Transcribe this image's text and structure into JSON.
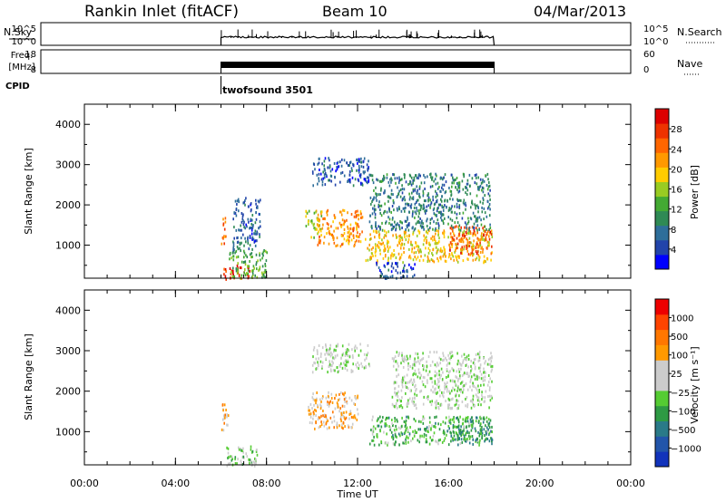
{
  "header": {
    "title": "Rankin Inlet (fitACF)",
    "beam": "Beam 10",
    "date": "04/Mar/2013"
  },
  "aux_panels": {
    "nsky_label": "N.Sky",
    "nsky_ticks": [
      "10^5",
      "10^0"
    ],
    "nsky_right_ticks": [
      "10^5",
      "10^0"
    ],
    "nsearch_label": "N.Search",
    "freq_label_top": "Freq.",
    "freq_label_bottom": "[MHz]",
    "freq_ticks": [
      "18",
      "8"
    ],
    "nave_ticks": [
      "60",
      "0"
    ],
    "nave_label": "Nave",
    "cpid_label": "CPID",
    "cpid_value": "twofsound 3501"
  },
  "x_axis": {
    "label": "Time UT",
    "ticks": [
      "00:00",
      "04:00",
      "08:00",
      "12:00",
      "16:00",
      "20:00",
      "00:00"
    ],
    "range_hours": [
      0,
      24
    ],
    "data_span_hours": [
      6,
      18
    ]
  },
  "y_axis": {
    "label": "Slant Range [km]",
    "ticks": [
      "4000",
      "3000",
      "2000",
      "1000"
    ],
    "range_km": [
      180,
      4500
    ]
  },
  "power_colorbar": {
    "label": "Power [dB]",
    "ticks": [
      "28",
      "24",
      "20",
      "16",
      "12",
      "8",
      "4"
    ],
    "colors": [
      "#0000ff",
      "#2244aa",
      "#2e6e9a",
      "#2f8a55",
      "#44aa33",
      "#99cc22",
      "#ffcc00",
      "#ff9900",
      "#ff6600",
      "#ee3300",
      "#dd0000"
    ]
  },
  "velocity_colorbar": {
    "label": "Velocity [m s⁻¹]",
    "ticks": [
      "1000",
      "500",
      "100",
      "25",
      "−25",
      "−100",
      "−500",
      "−1000"
    ],
    "colors": [
      "#1133bb",
      "#2255aa",
      "#2a7a88",
      "#2e9a44",
      "#55cc33",
      "#cccccc",
      "#cccccc",
      "#ff9900",
      "#ff7700",
      "#ff4400",
      "#ee0000"
    ]
  },
  "chart_data": {
    "type": "heatmap",
    "title": "Rankin Inlet (fitACF)",
    "xlabel": "Time UT",
    "ylabel": "Slant Range [km]",
    "xlim": [
      0,
      24
    ],
    "ylim": [
      180,
      4500
    ],
    "panels": [
      {
        "name": "Power [dB]",
        "clim": [
          0,
          30
        ],
        "regions": [
          {
            "t": [
              6.0,
              6.2
            ],
            "r": [
              1000,
              1800
            ],
            "v": 22
          },
          {
            "t": [
              6.1,
              7.3
            ],
            "r": [
              180,
              520
            ],
            "v": 27
          },
          {
            "t": [
              6.3,
              8.0
            ],
            "r": [
              200,
              900
            ],
            "v": 12
          },
          {
            "t": [
              6.5,
              7.7
            ],
            "r": [
              900,
              2200
            ],
            "v": 6
          },
          {
            "t": [
              9.7,
              10.4
            ],
            "r": [
              1200,
              1900
            ],
            "v": 16
          },
          {
            "t": [
              10.2,
              12.2
            ],
            "r": [
              1000,
              1900
            ],
            "v": 21
          },
          {
            "t": [
              10.0,
              12.5
            ],
            "r": [
              2500,
              3200
            ],
            "v": 5
          },
          {
            "t": [
              12.3,
              17.9
            ],
            "r": [
              600,
              1400
            ],
            "v": 18
          },
          {
            "t": [
              16.0,
              17.9
            ],
            "r": [
              800,
              1500
            ],
            "v": 24
          },
          {
            "t": [
              12.5,
              17.8
            ],
            "r": [
              1400,
              2800
            ],
            "v": 8
          },
          {
            "t": [
              12.8,
              14.5
            ],
            "r": [
              200,
              600
            ],
            "v": 5
          }
        ]
      },
      {
        "name": "Velocity [m s⁻¹]",
        "clim": [
          -1000,
          1000
        ],
        "regions": [
          {
            "t": [
              6.0,
              6.3
            ],
            "r": [
              1000,
              1800
            ],
            "v": 300
          },
          {
            "t": [
              6.2,
              7.6
            ],
            "r": [
              180,
              700
            ],
            "v": -150
          },
          {
            "t": [
              9.8,
              12.0
            ],
            "r": [
              1100,
              2000
            ],
            "v": 300
          },
          {
            "t": [
              10.0,
              12.5
            ],
            "r": [
              2500,
              3200
            ],
            "v": 0
          },
          {
            "t": [
              12.5,
              17.9
            ],
            "r": [
              700,
              1400
            ],
            "v": -250
          },
          {
            "t": [
              13.5,
              17.9
            ],
            "r": [
              1600,
              3000
            ],
            "v": 0
          },
          {
            "t": [
              16.0,
              17.9
            ],
            "r": [
              800,
              1400
            ],
            "v": -400
          }
        ]
      }
    ]
  }
}
